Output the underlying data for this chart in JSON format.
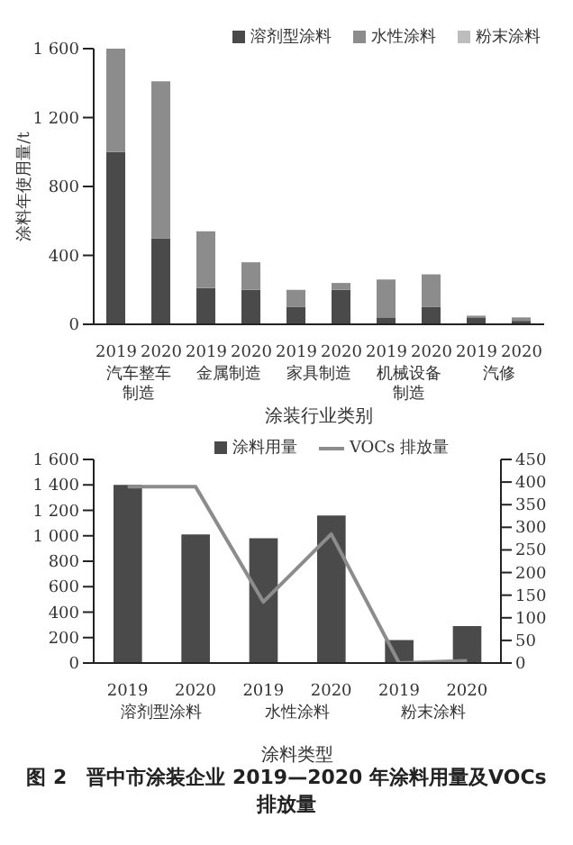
{
  "chart_data": [
    {
      "type": "bar",
      "stacked": true,
      "xlabel": "涂装行业类别",
      "ylabel": "涂料年使用量/t",
      "categories": [
        "2019",
        "2020",
        "2019",
        "2020",
        "2019",
        "2020",
        "2019",
        "2020",
        "2019",
        "2020"
      ],
      "annotations": [
        "汽车整车制造",
        "金属制造",
        "家具制造",
        "机械设备制造",
        "汽修"
      ],
      "series": [
        {
          "name": "溶剂型涂料",
          "color": "#4a4a4a",
          "values": [
            1000,
            500,
            210,
            200,
            100,
            200,
            40,
            100,
            40,
            20
          ]
        },
        {
          "name": "水性涂料",
          "color": "#8c8c8c",
          "values": [
            600,
            910,
            330,
            160,
            100,
            40,
            220,
            190,
            10,
            20
          ]
        },
        {
          "name": "粉末涂料",
          "color": "#bdbdbd",
          "values": [
            0,
            0,
            0,
            0,
            0,
            0,
            0,
            0,
            0,
            0
          ]
        }
      ],
      "ylim": [
        0,
        1600
      ],
      "yticks": [
        0,
        {
          "value": 400,
          "label": "400"
        },
        {
          "value": 800,
          "label": "800"
        },
        {
          "value": 1200,
          "label": "1 200"
        },
        {
          "value": 1600,
          "label": "1 600"
        }
      ],
      "legend": "top right",
      "grid": false
    },
    {
      "type": "bar",
      "xlabel": "涂料类型",
      "categories": [
        "2019",
        "2020",
        "2019",
        "2020",
        "2019",
        "2020"
      ],
      "annotations": [
        "溶剂型涂料",
        "水性涂料",
        "粉末涂料"
      ],
      "title": "图 2　晋中市涂装企业 2019—2020 年涂料用量及VOCs 排放量",
      "series": [
        {
          "name": "涂料用量",
          "color": "#4a4a4a",
          "values": [
            1400,
            1010,
            980,
            1160,
            180,
            290
          ]
        },
        {
          "name": "VOCs 排放量",
          "type": "line",
          "axis": "y2",
          "color": "#8c8c8c",
          "values": [
            390,
            390,
            135,
            285,
            0,
            5
          ]
        }
      ],
      "ylim": [
        0,
        1600
      ],
      "yticks": [
        0,
        200,
        400,
        600,
        800,
        {
          "value": 1000,
          "label": "1 000"
        },
        {
          "value": 1200,
          "label": "1 200"
        },
        {
          "value": 1400,
          "label": "1 400"
        },
        {
          "value": 1600,
          "label": "1 600"
        }
      ],
      "y2lim": [
        0,
        450
      ],
      "y2ticks": [
        0,
        50,
        100,
        150,
        200,
        250,
        300,
        350,
        400,
        450
      ],
      "legend": "top",
      "grid": false
    }
  ]
}
